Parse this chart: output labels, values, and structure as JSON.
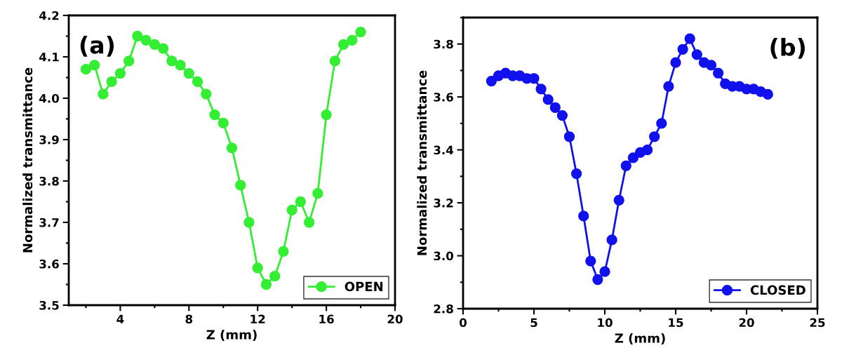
{
  "chart_data": [
    {
      "type": "line",
      "xlabel": "Z (mm)",
      "ylabel": "Normalized transmittance",
      "annotations": [
        "(a)"
      ],
      "x": [
        2,
        2.5,
        3,
        3.5,
        4,
        4.5,
        5,
        5.5,
        6,
        6.5,
        7,
        7.5,
        8,
        8.5,
        9,
        9.5,
        10,
        10.5,
        11,
        11.5,
        12,
        12.5,
        13,
        13.5,
        14,
        14.5,
        15,
        15.5,
        16,
        16.5,
        17,
        17.5,
        18
      ],
      "series": [
        {
          "name": "OPEN",
          "color": "#33ee33",
          "values": [
            4.07,
            4.08,
            4.01,
            4.04,
            4.06,
            4.09,
            4.15,
            4.14,
            4.13,
            4.12,
            4.09,
            4.08,
            4.06,
            4.04,
            4.01,
            3.96,
            3.94,
            3.88,
            3.79,
            3.7,
            3.59,
            3.55,
            3.57,
            3.63,
            3.73,
            3.75,
            3.7,
            3.77,
            3.96,
            4.09,
            4.13,
            4.14,
            4.16
          ]
        }
      ],
      "xlim": [
        1,
        20
      ],
      "xticks": [
        4,
        8,
        12,
        16,
        20
      ],
      "ylim": [
        3.5,
        4.2
      ],
      "yticks": [
        3.5,
        3.6,
        3.7,
        3.8,
        3.9,
        {
          "value": 4,
          "label": "4.0"
        },
        4.1,
        4.2
      ],
      "marker": "circle",
      "legend": "bottom right",
      "grid": false
    },
    {
      "type": "line",
      "xlabel": "Z (mm)",
      "ylabel": "Normalized transmittance",
      "annotations": [
        "(b)"
      ],
      "x": [
        2,
        2.5,
        3,
        3.5,
        4,
        4.5,
        5,
        5.5,
        6,
        6.5,
        7,
        7.5,
        8,
        8.5,
        9,
        9.5,
        10,
        10.5,
        11,
        11.5,
        12,
        12.5,
        13,
        13.5,
        14,
        14.5,
        15,
        15.5,
        16,
        16.5,
        17,
        17.5,
        18,
        18.5,
        19,
        19.5,
        20,
        20.5,
        21,
        21.5
      ],
      "series": [
        {
          "name": "CLOSED",
          "color": "#1111ee",
          "values": [
            3.66,
            3.68,
            3.69,
            3.68,
            3.68,
            3.67,
            3.67,
            3.63,
            3.59,
            3.56,
            3.53,
            3.45,
            3.31,
            3.15,
            2.98,
            2.91,
            2.94,
            3.06,
            3.21,
            3.34,
            3.37,
            3.39,
            3.4,
            3.45,
            3.5,
            3.64,
            3.73,
            3.78,
            3.82,
            3.76,
            3.73,
            3.72,
            3.69,
            3.65,
            3.64,
            3.64,
            3.63,
            3.63,
            3.62,
            3.61
          ]
        }
      ],
      "xlim": [
        0,
        25
      ],
      "xticks": [
        0,
        5,
        10,
        15,
        20,
        25
      ],
      "ylim": [
        2.8,
        3.9
      ],
      "yticks": [
        {
          "value": 2.8,
          "label": "2.8"
        },
        {
          "value": 3.0,
          "label": "3.0"
        },
        {
          "value": 3.2,
          "label": "3.2"
        },
        {
          "value": 3.4,
          "label": "3.4"
        },
        {
          "value": 3.6,
          "label": "3.6"
        },
        {
          "value": 3.8,
          "label": "3.8"
        }
      ],
      "marker": "circle",
      "legend": "bottom right",
      "grid": false
    }
  ]
}
